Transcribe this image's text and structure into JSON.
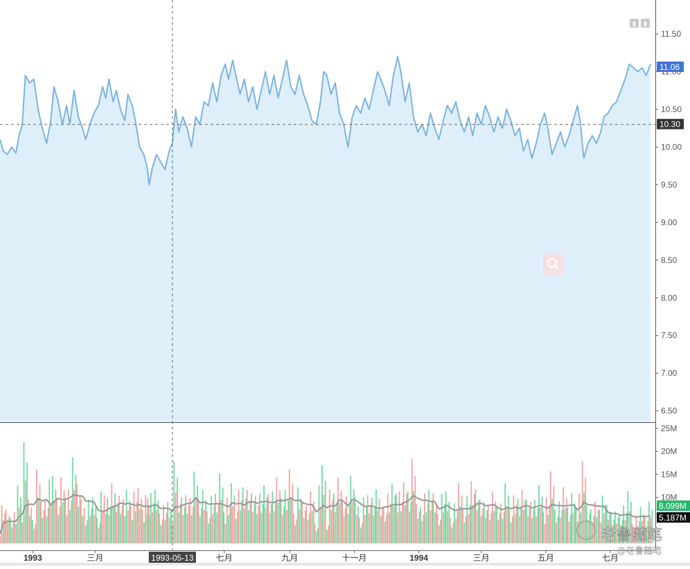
{
  "chart_data": {
    "type": "area",
    "price_axis": {
      "ylim": [
        6.35,
        11.95
      ],
      "ticks": [
        "11.50",
        "11.00",
        "10.50",
        "10.00",
        "9.50",
        "9.00",
        "8.50",
        "8.00",
        "7.50",
        "7.00",
        "6.50"
      ]
    },
    "volume_axis": {
      "ylim": [
        0,
        26
      ],
      "unit": "M",
      "ticks": [
        "25M",
        "20M",
        "15M",
        "10M"
      ]
    },
    "x_axis": {
      "range": [
        "1992-12-01",
        "1994-08-12"
      ],
      "labels": [
        {
          "date": "1993-01-01",
          "text": "1993",
          "bold": true
        },
        {
          "date": "1993-03-01",
          "text": "三月",
          "bold": false
        },
        {
          "date": "1993-07-01",
          "text": "七月",
          "bold": false
        },
        {
          "date": "1993-09-01",
          "text": "九月",
          "bold": false
        },
        {
          "date": "1993-11-01",
          "text": "十一月",
          "bold": false
        },
        {
          "date": "1994-01-01",
          "text": "1994",
          "bold": true
        },
        {
          "date": "1994-03-01",
          "text": "三月",
          "bold": false
        },
        {
          "date": "1994-05-01",
          "text": "五月",
          "bold": false
        },
        {
          "date": "1994-07-01",
          "text": "七月",
          "bold": false
        }
      ]
    },
    "crosshair": {
      "date": "1993-05-13",
      "date_label": "1993-05-13",
      "price": 10.3,
      "price_label": "10.30"
    },
    "last_price_label": "11.06",
    "last_price": 11.06,
    "volume_labels": {
      "latest": "8.099M",
      "average": "5.187M"
    },
    "price_series": [
      [
        "1992-12-01",
        10.1
      ],
      [
        "1992-12-04",
        9.95
      ],
      [
        "1992-12-08",
        9.9
      ],
      [
        "1992-12-12",
        10.0
      ],
      [
        "1992-12-16",
        9.92
      ],
      [
        "1992-12-19",
        10.15
      ],
      [
        "1992-12-22",
        10.3
      ],
      [
        "1992-12-25",
        10.95
      ],
      [
        "1992-12-29",
        10.85
      ],
      [
        "1993-01-02",
        10.9
      ],
      [
        "1993-01-06",
        10.5
      ],
      [
        "1993-01-10",
        10.25
      ],
      [
        "1993-01-14",
        10.05
      ],
      [
        "1993-01-18",
        10.35
      ],
      [
        "1993-01-21",
        10.8
      ],
      [
        "1993-01-25",
        10.6
      ],
      [
        "1993-01-29",
        10.3
      ],
      [
        "1993-02-02",
        10.55
      ],
      [
        "1993-02-05",
        10.3
      ],
      [
        "1993-02-09",
        10.75
      ],
      [
        "1993-02-13",
        10.4
      ],
      [
        "1993-02-17",
        10.25
      ],
      [
        "1993-02-20",
        10.1
      ],
      [
        "1993-02-24",
        10.3
      ],
      [
        "1993-02-28",
        10.45
      ],
      [
        "1993-03-04",
        10.55
      ],
      [
        "1993-03-08",
        10.8
      ],
      [
        "1993-03-11",
        10.65
      ],
      [
        "1993-03-14",
        10.9
      ],
      [
        "1993-03-18",
        10.6
      ],
      [
        "1993-03-21",
        10.75
      ],
      [
        "1993-03-25",
        10.5
      ],
      [
        "1993-03-29",
        10.35
      ],
      [
        "1993-04-01",
        10.7
      ],
      [
        "1993-04-05",
        10.55
      ],
      [
        "1993-04-08",
        10.35
      ],
      [
        "1993-04-12",
        10.0
      ],
      [
        "1993-04-16",
        9.9
      ],
      [
        "1993-04-19",
        9.75
      ],
      [
        "1993-04-21",
        9.5
      ],
      [
        "1993-04-24",
        9.72
      ],
      [
        "1993-04-28",
        9.9
      ],
      [
        "1993-05-02",
        9.8
      ],
      [
        "1993-05-06",
        9.7
      ],
      [
        "1993-05-10",
        9.95
      ],
      [
        "1993-05-13",
        10.05
      ],
      [
        "1993-05-16",
        10.5
      ],
      [
        "1993-05-19",
        10.2
      ],
      [
        "1993-05-23",
        10.4
      ],
      [
        "1993-05-27",
        10.25
      ],
      [
        "1993-05-31",
        10.0
      ],
      [
        "1993-06-04",
        10.4
      ],
      [
        "1993-06-08",
        10.3
      ],
      [
        "1993-06-12",
        10.6
      ],
      [
        "1993-06-16",
        10.55
      ],
      [
        "1993-06-20",
        10.85
      ],
      [
        "1993-06-24",
        10.6
      ],
      [
        "1993-06-28",
        10.95
      ],
      [
        "1993-07-02",
        11.1
      ],
      [
        "1993-07-05",
        10.9
      ],
      [
        "1993-07-09",
        11.15
      ],
      [
        "1993-07-12",
        10.95
      ],
      [
        "1993-07-16",
        10.7
      ],
      [
        "1993-07-20",
        10.9
      ],
      [
        "1993-07-24",
        10.6
      ],
      [
        "1993-07-28",
        10.8
      ],
      [
        "1993-08-01",
        10.5
      ],
      [
        "1993-08-05",
        10.75
      ],
      [
        "1993-08-09",
        11.0
      ],
      [
        "1993-08-13",
        10.7
      ],
      [
        "1993-08-17",
        10.95
      ],
      [
        "1993-08-21",
        10.65
      ],
      [
        "1993-08-25",
        10.9
      ],
      [
        "1993-08-29",
        11.15
      ],
      [
        "1993-09-02",
        10.8
      ],
      [
        "1993-09-06",
        10.7
      ],
      [
        "1993-09-10",
        10.95
      ],
      [
        "1993-09-14",
        10.7
      ],
      [
        "1993-09-18",
        10.55
      ],
      [
        "1993-09-22",
        10.35
      ],
      [
        "1993-09-26",
        10.3
      ],
      [
        "1993-09-30",
        10.6
      ],
      [
        "1993-10-03",
        11.0
      ],
      [
        "1993-10-06",
        10.95
      ],
      [
        "1993-10-10",
        10.7
      ],
      [
        "1993-10-14",
        10.85
      ],
      [
        "1993-10-18",
        10.45
      ],
      [
        "1993-10-22",
        10.3
      ],
      [
        "1993-10-26",
        10.0
      ],
      [
        "1993-10-30",
        10.4
      ],
      [
        "1993-11-03",
        10.55
      ],
      [
        "1993-11-07",
        10.45
      ],
      [
        "1993-11-11",
        10.65
      ],
      [
        "1993-11-15",
        10.5
      ],
      [
        "1993-11-19",
        10.75
      ],
      [
        "1993-11-23",
        11.0
      ],
      [
        "1993-11-26",
        10.9
      ],
      [
        "1993-11-30",
        10.75
      ],
      [
        "1993-12-04",
        10.55
      ],
      [
        "1993-12-08",
        10.95
      ],
      [
        "1993-12-12",
        11.2
      ],
      [
        "1993-12-15",
        11.0
      ],
      [
        "1993-12-19",
        10.6
      ],
      [
        "1993-12-23",
        10.85
      ],
      [
        "1993-12-27",
        10.4
      ],
      [
        "1993-12-31",
        10.2
      ],
      [
        "1994-01-04",
        10.3
      ],
      [
        "1994-01-08",
        10.15
      ],
      [
        "1994-01-12",
        10.45
      ],
      [
        "1994-01-16",
        10.25
      ],
      [
        "1994-01-20",
        10.1
      ],
      [
        "1994-01-24",
        10.35
      ],
      [
        "1994-01-28",
        10.55
      ],
      [
        "1994-02-01",
        10.45
      ],
      [
        "1994-02-05",
        10.6
      ],
      [
        "1994-02-09",
        10.35
      ],
      [
        "1994-02-13",
        10.2
      ],
      [
        "1994-02-17",
        10.4
      ],
      [
        "1994-02-21",
        10.15
      ],
      [
        "1994-02-25",
        10.45
      ],
      [
        "1994-03-01",
        10.3
      ],
      [
        "1994-03-05",
        10.55
      ],
      [
        "1994-03-09",
        10.4
      ],
      [
        "1994-03-13",
        10.2
      ],
      [
        "1994-03-17",
        10.4
      ],
      [
        "1994-03-21",
        10.25
      ],
      [
        "1994-03-25",
        10.5
      ],
      [
        "1994-03-29",
        10.35
      ],
      [
        "1994-04-02",
        10.15
      ],
      [
        "1994-04-06",
        10.25
      ],
      [
        "1994-04-10",
        9.95
      ],
      [
        "1994-04-14",
        10.1
      ],
      [
        "1994-04-18",
        9.85
      ],
      [
        "1994-04-22",
        10.05
      ],
      [
        "1994-04-26",
        10.3
      ],
      [
        "1994-04-30",
        10.45
      ],
      [
        "1994-05-03",
        10.25
      ],
      [
        "1994-05-07",
        9.9
      ],
      [
        "1994-05-11",
        10.05
      ],
      [
        "1994-05-15",
        10.2
      ],
      [
        "1994-05-19",
        10.0
      ],
      [
        "1994-05-23",
        10.15
      ],
      [
        "1994-05-27",
        10.35
      ],
      [
        "1994-05-31",
        10.55
      ],
      [
        "1994-06-03",
        10.3
      ],
      [
        "1994-06-06",
        9.85
      ],
      [
        "1994-06-10",
        10.05
      ],
      [
        "1994-06-14",
        10.15
      ],
      [
        "1994-06-18",
        10.05
      ],
      [
        "1994-06-22",
        10.2
      ],
      [
        "1994-06-25",
        10.4
      ],
      [
        "1994-06-29",
        10.45
      ],
      [
        "1994-07-03",
        10.55
      ],
      [
        "1994-07-07",
        10.6
      ],
      [
        "1994-07-11",
        10.75
      ],
      [
        "1994-07-15",
        10.9
      ],
      [
        "1994-07-19",
        11.1
      ],
      [
        "1994-07-23",
        11.05
      ],
      [
        "1994-07-27",
        11.0
      ],
      [
        "1994-07-31",
        11.05
      ],
      [
        "1994-08-04",
        10.95
      ],
      [
        "1994-08-08",
        11.1
      ]
    ]
  },
  "toolbar": {
    "buttons": [
      "▮",
      "▮"
    ]
  },
  "zoom_button": {
    "icon": "search-icon"
  },
  "watermark": {
    "logo_text": "老鲁随笔",
    "handle": "@老鲁随笔"
  },
  "colors": {
    "line": "#7db4dc",
    "area": "#deeffa",
    "volume_up": "#74d9a3",
    "volume_down": "#f2a4a0",
    "volume_ma": "#959595",
    "last_price_tag": "#3d73d6",
    "crosshair_tag": "#333333",
    "volume_latest_tag": "#27b86e"
  }
}
